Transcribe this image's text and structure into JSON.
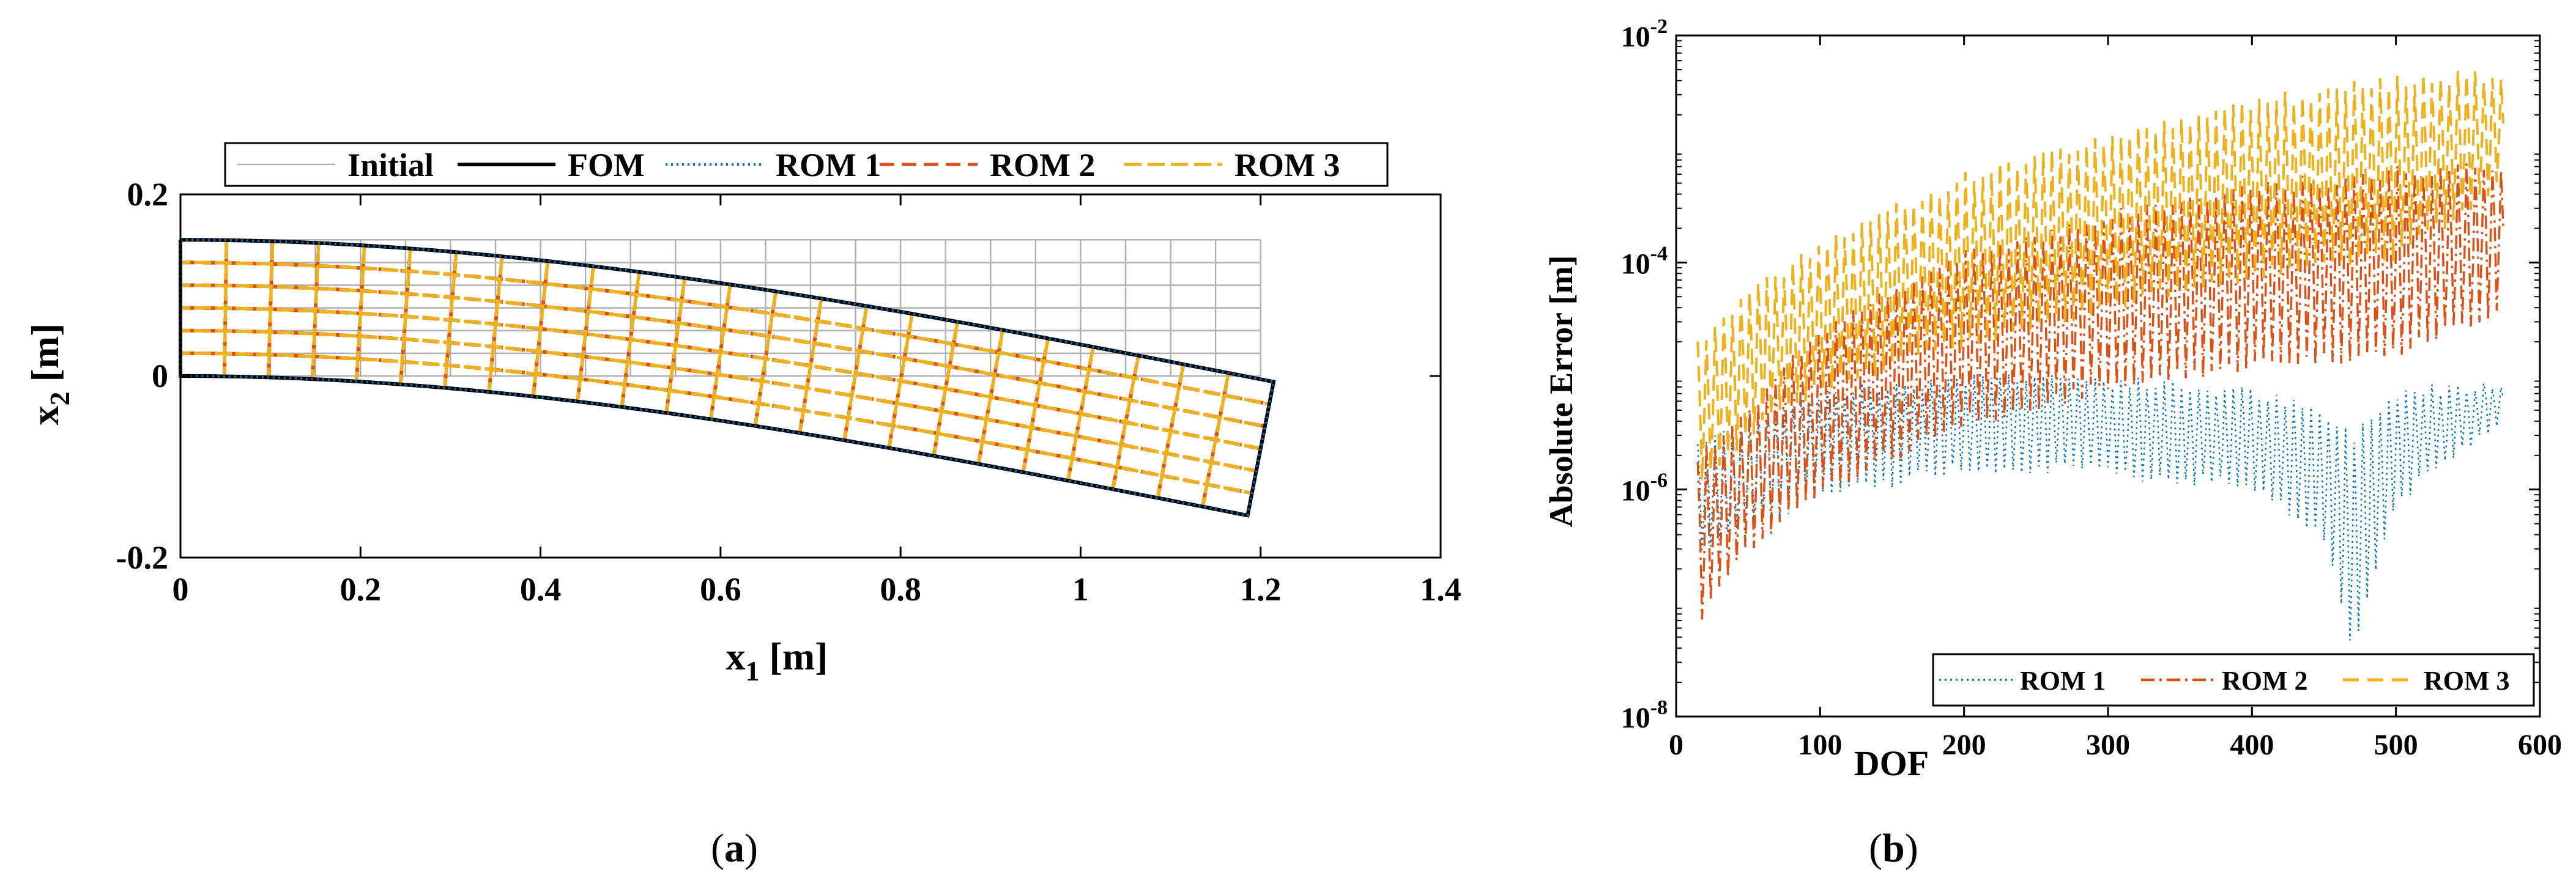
{
  "figure_a": {
    "caption_open": "(",
    "caption_letter": "a",
    "caption_close": ")",
    "chart_data": {
      "type": "line",
      "title": "",
      "xlabel": "x",
      "xlabel_sub": "1",
      "xlabel_unit": " [m]",
      "ylabel": "x",
      "ylabel_sub": "2",
      "ylabel_unit": " [m]",
      "xlim": [
        0,
        1.4
      ],
      "ylim": [
        -0.2,
        0.2
      ],
      "xticks": [
        0,
        0.2,
        0.4,
        0.6,
        0.8,
        1,
        1.2,
        1.4
      ],
      "xtick_labels": [
        "0",
        "0.2",
        "0.4",
        "0.6",
        "0.8",
        "1",
        "1.2",
        "1.4"
      ],
      "yticks": [
        -0.2,
        0,
        0.2
      ],
      "ytick_labels": [
        "-0.2",
        "0",
        "0.2"
      ],
      "legend_position": "top",
      "beam": {
        "length": 1.2,
        "height": 0.15,
        "columns": 24,
        "rows": 6,
        "tip_deflection": -0.155
      },
      "series": [
        {
          "name": "Initial",
          "color": "#b0b0b0",
          "dash": "solid",
          "description": "undeformed mesh"
        },
        {
          "name": "FOM",
          "color": "#000000",
          "dash": "solid",
          "description": "deformed outline"
        },
        {
          "name": "ROM 1",
          "color": "#0072bd",
          "dash": "dotted",
          "description": "deformed outline"
        },
        {
          "name": "ROM 2",
          "color": "#d95319",
          "dash": "dashed",
          "description": "deformed mesh"
        },
        {
          "name": "ROM 3",
          "color": "#edb120",
          "dash": "dashed",
          "description": "deformed mesh"
        }
      ]
    }
  },
  "figure_b": {
    "caption_open": "(",
    "caption_letter": "b",
    "caption_close": ")",
    "chart_data": {
      "type": "line",
      "title": "",
      "xlabel": "DOF",
      "ylabel": "Absolute Error [m]",
      "yscale": "log",
      "xlim": [
        0,
        600
      ],
      "ylim": [
        1e-08,
        0.01
      ],
      "xticks": [
        0,
        100,
        200,
        300,
        400,
        500,
        600
      ],
      "xtick_labels": [
        "0",
        "100",
        "200",
        "300",
        "400",
        "500",
        "600"
      ],
      "yticks": [
        -8,
        -6,
        -4,
        -2
      ],
      "ytick_base": "10",
      "ytick_exponents": [
        "-8",
        "-6",
        "-4",
        "-2"
      ],
      "legend_position": "bottom-right",
      "series": [
        {
          "name": "ROM 1",
          "color": "#0072bd",
          "dash": "dotted",
          "envelope_x": [
            15,
            100,
            200,
            250,
            300,
            400,
            450,
            470,
            500,
            575
          ],
          "envelope_log10_upper": [
            -5.6,
            -5.15,
            -5.02,
            -5.0,
            -5.05,
            -5.15,
            -5.35,
            -5.55,
            -5.15,
            -5.05
          ],
          "envelope_log10_lower": [
            -6.5,
            -6.05,
            -5.8,
            -5.8,
            -5.85,
            -5.95,
            -6.4,
            -7.4,
            -6.1,
            -5.35
          ]
        },
        {
          "name": "ROM 2",
          "color": "#d95319",
          "dash": "dashdot",
          "envelope_x": [
            15,
            50,
            100,
            200,
            300,
            400,
            500,
            575
          ],
          "envelope_log10_upper": [
            -5.7,
            -5.3,
            -4.6,
            -3.95,
            -3.6,
            -3.35,
            -3.2,
            -3.15
          ],
          "envelope_log10_lower": [
            -7.2,
            -6.5,
            -6.0,
            -5.4,
            -5.1,
            -4.9,
            -4.8,
            -4.4
          ]
        },
        {
          "name": "ROM 3",
          "color": "#edb120",
          "dash": "dashed",
          "envelope_x": [
            15,
            50,
            100,
            200,
            300,
            400,
            500,
            575
          ],
          "envelope_log10_upper": [
            -4.7,
            -4.3,
            -3.85,
            -3.25,
            -2.9,
            -2.6,
            -2.4,
            -2.35
          ],
          "envelope_log10_lower": [
            -6.0,
            -5.5,
            -5.1,
            -4.7,
            -4.4,
            -4.1,
            -3.95,
            -3.3
          ]
        }
      ]
    }
  }
}
